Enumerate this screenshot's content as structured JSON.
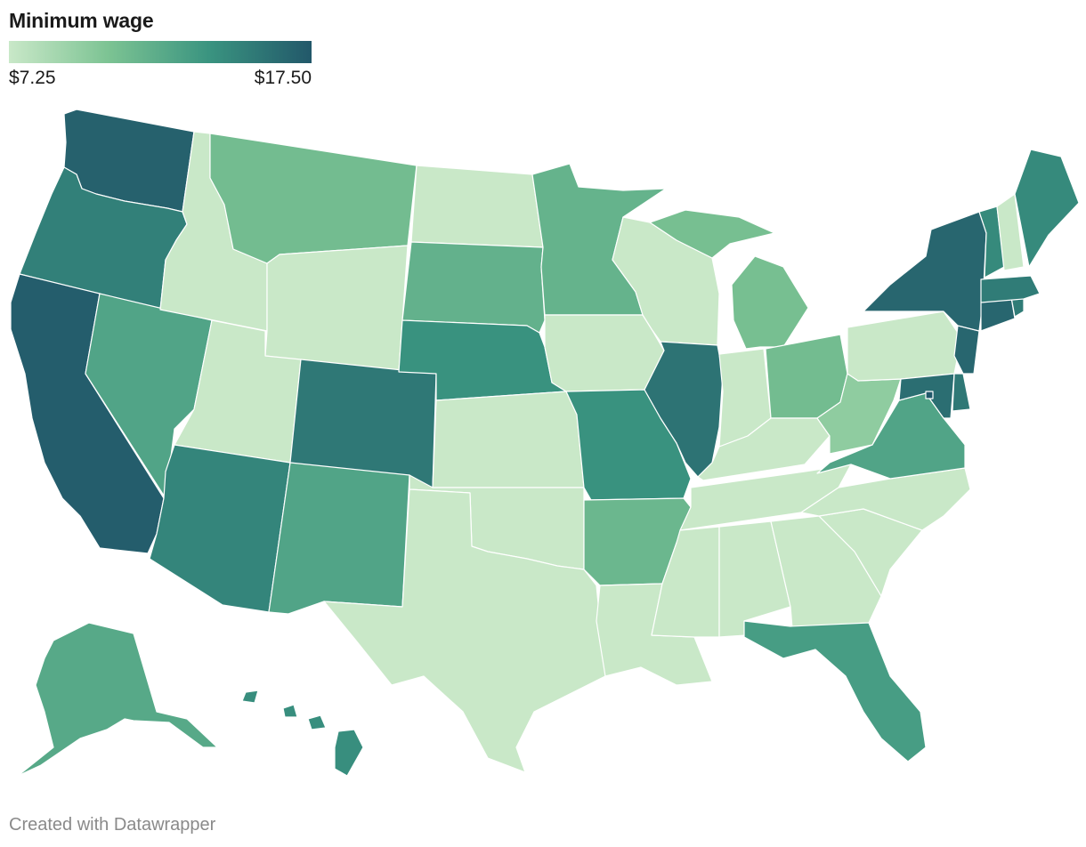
{
  "title": "Minimum wage",
  "legend": {
    "min_label": "$7.25",
    "max_label": "$17.50",
    "min_value": 7.25,
    "max_value": 17.5,
    "colors": [
      "#c9e8c8",
      "#7cc393",
      "#3a9480",
      "#22586a"
    ]
  },
  "credit": "Created with Datawrapper",
  "states": [
    {
      "id": "WA",
      "level": 0.95
    },
    {
      "id": "OR",
      "level": 0.78
    },
    {
      "id": "CA",
      "level": 0.97
    },
    {
      "id": "NV",
      "level": 0.55
    },
    {
      "id": "ID",
      "level": 0.0
    },
    {
      "id": "MT",
      "level": 0.38
    },
    {
      "id": "WY",
      "level": 0.0
    },
    {
      "id": "UT",
      "level": 0.0
    },
    {
      "id": "AZ",
      "level": 0.75
    },
    {
      "id": "CO",
      "level": 0.82
    },
    {
      "id": "NM",
      "level": 0.55
    },
    {
      "id": "ND",
      "level": 0.0
    },
    {
      "id": "SD",
      "level": 0.46
    },
    {
      "id": "NE",
      "level": 0.68
    },
    {
      "id": "KS",
      "level": 0.0
    },
    {
      "id": "OK",
      "level": 0.0
    },
    {
      "id": "TX",
      "level": 0.0
    },
    {
      "id": "MN",
      "level": 0.45
    },
    {
      "id": "IA",
      "level": 0.0
    },
    {
      "id": "MO",
      "level": 0.68
    },
    {
      "id": "AR",
      "level": 0.42
    },
    {
      "id": "LA",
      "level": 0.0
    },
    {
      "id": "WI",
      "level": 0.0
    },
    {
      "id": "IL",
      "level": 0.85
    },
    {
      "id": "MI",
      "level": 0.36
    },
    {
      "id": "IN",
      "level": 0.0
    },
    {
      "id": "OH",
      "level": 0.38
    },
    {
      "id": "KY",
      "level": 0.0
    },
    {
      "id": "TN",
      "level": 0.0
    },
    {
      "id": "MS",
      "level": 0.0
    },
    {
      "id": "AL",
      "level": 0.0
    },
    {
      "id": "GA",
      "level": 0.0
    },
    {
      "id": "FL",
      "level": 0.6
    },
    {
      "id": "SC",
      "level": 0.0
    },
    {
      "id": "NC",
      "level": 0.0
    },
    {
      "id": "VA",
      "level": 0.55
    },
    {
      "id": "WV",
      "level": 0.25
    },
    {
      "id": "PA",
      "level": 0.0
    },
    {
      "id": "NY",
      "level": 0.92
    },
    {
      "id": "VT",
      "level": 0.72
    },
    {
      "id": "NH",
      "level": 0.0
    },
    {
      "id": "ME",
      "level": 0.72
    },
    {
      "id": "MA",
      "level": 0.8
    },
    {
      "id": "RI",
      "level": 0.8
    },
    {
      "id": "CT",
      "level": 0.92
    },
    {
      "id": "NJ",
      "level": 0.92
    },
    {
      "id": "DE",
      "level": 0.82
    },
    {
      "id": "MD",
      "level": 0.88
    },
    {
      "id": "DC",
      "level": 1.0
    },
    {
      "id": "AK",
      "level": 0.52
    },
    {
      "id": "HI",
      "level": 0.7
    }
  ]
}
